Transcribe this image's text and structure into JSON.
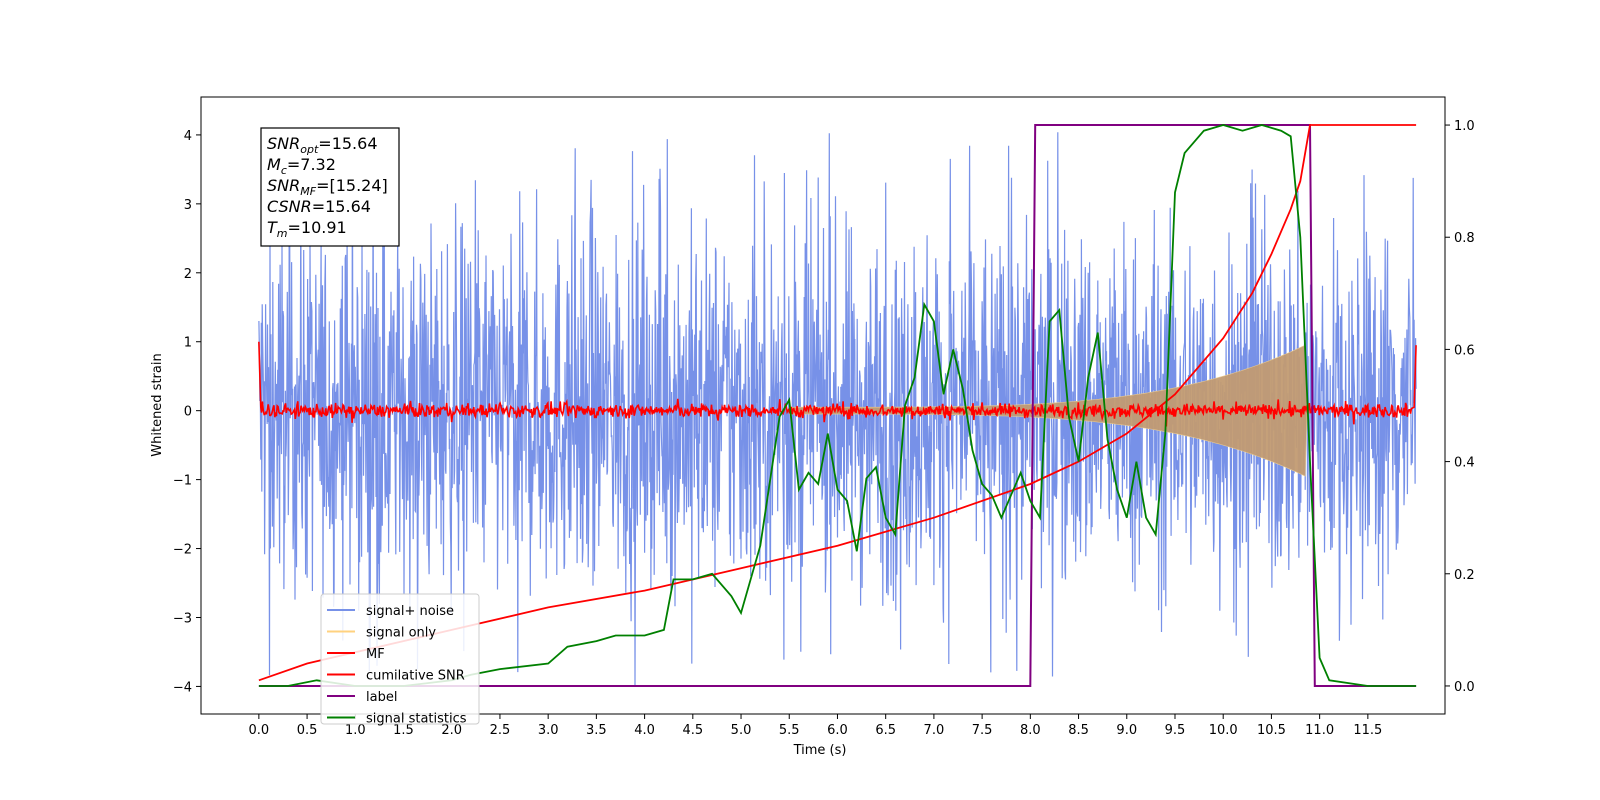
{
  "chart_data": {
    "type": "line",
    "xlabel": "Time (s)",
    "ylabel": "Whitened strain",
    "xlim": [
      -0.6,
      12.3
    ],
    "ylim": [
      -4.4,
      4.55
    ],
    "ylim_right": [
      -0.05,
      1.05
    ],
    "grid": false,
    "legend_position": "lower-left",
    "x_ticks": [
      "0.0",
      "0.5",
      "1.0",
      "1.5",
      "2.0",
      "2.5",
      "3.0",
      "3.5",
      "4.0",
      "4.5",
      "5.0",
      "5.5",
      "6.0",
      "6.5",
      "7.0",
      "7.5",
      "8.0",
      "8.5",
      "9.0",
      "9.5",
      "10.0",
      "10.5",
      "11.0",
      "11.5"
    ],
    "y_ticks_left": [
      "4",
      "3",
      "2",
      "1",
      "0",
      "−1",
      "−2",
      "−3",
      "−4"
    ],
    "y_ticks_right": [
      "1.0",
      "0.8",
      "0.6",
      "0.4",
      "0.2",
      "0.0"
    ],
    "annotation": {
      "snr_opt": {
        "symbol": "SNR",
        "sub": "opt",
        "value": "=15.64"
      },
      "mc": {
        "symbol": "M",
        "sub": "c",
        "value": "=7.32"
      },
      "snr_mf": {
        "symbol": "SNR",
        "sub": "MF",
        "value": "=[15.24]"
      },
      "csnr": {
        "symbol": "CSNR",
        "value": "=15.64"
      },
      "tm": {
        "symbol": "T",
        "sub": "m",
        "value": "=10.91"
      }
    },
    "series": [
      {
        "name": "signal+ noise",
        "axis": "left",
        "color": "#7791e8",
        "description": "noisy whitened strain, amplitude roughly ±2.5 with spikes to ±4",
        "amplitude": 1.3,
        "t_start": 0.0,
        "t_end": 12.0
      },
      {
        "name": "signal only",
        "axis": "left",
        "color": "#c29b72",
        "description": "chirp envelope growing until merger",
        "envelope": {
          "t_start": 5.5,
          "t_peak": 10.85,
          "amp_start": 0.05,
          "amp_peak": 0.95
        }
      },
      {
        "name": "MF",
        "axis": "left",
        "color": "#ff0000",
        "description": "matched-filter output near zero",
        "start_value": 1.0,
        "end_value": 0.95,
        "noise": 0.05
      },
      {
        "name": "cumilative SNR",
        "axis": "right",
        "color": "#ff0000",
        "x": [
          0.0,
          0.5,
          1.0,
          2.0,
          3.0,
          4.0,
          5.0,
          6.0,
          7.0,
          8.0,
          8.5,
          9.0,
          9.5,
          10.0,
          10.3,
          10.5,
          10.7,
          10.8,
          10.9,
          11.0,
          11.5,
          12.0
        ],
        "y": [
          0.01,
          0.04,
          0.06,
          0.1,
          0.14,
          0.17,
          0.21,
          0.25,
          0.3,
          0.36,
          0.4,
          0.45,
          0.52,
          0.62,
          0.7,
          0.77,
          0.85,
          0.9,
          1.0,
          1.0,
          1.0,
          1.0
        ]
      },
      {
        "name": "label",
        "axis": "right",
        "color": "#800080",
        "x": [
          0.0,
          8.0,
          8.05,
          10.9,
          10.95,
          12.0
        ],
        "y": [
          0.0,
          0.0,
          1.0,
          1.0,
          0.0,
          0.0
        ]
      },
      {
        "name": "signal statistics",
        "axis": "right",
        "color": "#008000",
        "x": [
          0.0,
          0.3,
          0.6,
          1.0,
          1.5,
          2.0,
          2.2,
          2.5,
          3.0,
          3.2,
          3.5,
          3.7,
          4.0,
          4.2,
          4.3,
          4.5,
          4.7,
          4.9,
          5.0,
          5.2,
          5.4,
          5.5,
          5.6,
          5.7,
          5.8,
          5.9,
          6.0,
          6.1,
          6.2,
          6.3,
          6.4,
          6.5,
          6.6,
          6.7,
          6.8,
          6.9,
          7.0,
          7.1,
          7.2,
          7.3,
          7.4,
          7.5,
          7.6,
          7.7,
          7.8,
          7.9,
          8.0,
          8.1,
          8.2,
          8.3,
          8.4,
          8.5,
          8.6,
          8.7,
          8.8,
          8.9,
          9.0,
          9.1,
          9.2,
          9.3,
          9.4,
          9.5,
          9.6,
          9.8,
          10.0,
          10.2,
          10.4,
          10.6,
          10.7,
          10.8,
          10.9,
          11.0,
          11.1,
          11.5,
          12.0
        ],
        "y": [
          0.0,
          0.0,
          0.01,
          0.0,
          0.0,
          0.01,
          0.02,
          0.03,
          0.04,
          0.07,
          0.08,
          0.09,
          0.09,
          0.1,
          0.19,
          0.19,
          0.2,
          0.16,
          0.13,
          0.25,
          0.48,
          0.51,
          0.35,
          0.38,
          0.36,
          0.45,
          0.35,
          0.33,
          0.24,
          0.37,
          0.39,
          0.3,
          0.27,
          0.5,
          0.55,
          0.68,
          0.65,
          0.52,
          0.6,
          0.53,
          0.42,
          0.36,
          0.34,
          0.3,
          0.34,
          0.38,
          0.33,
          0.3,
          0.65,
          0.67,
          0.48,
          0.4,
          0.55,
          0.63,
          0.44,
          0.35,
          0.3,
          0.4,
          0.3,
          0.27,
          0.45,
          0.88,
          0.95,
          0.99,
          1.0,
          0.99,
          1.0,
          0.99,
          0.98,
          0.8,
          0.4,
          0.05,
          0.01,
          0.0,
          0.0
        ]
      }
    ]
  }
}
